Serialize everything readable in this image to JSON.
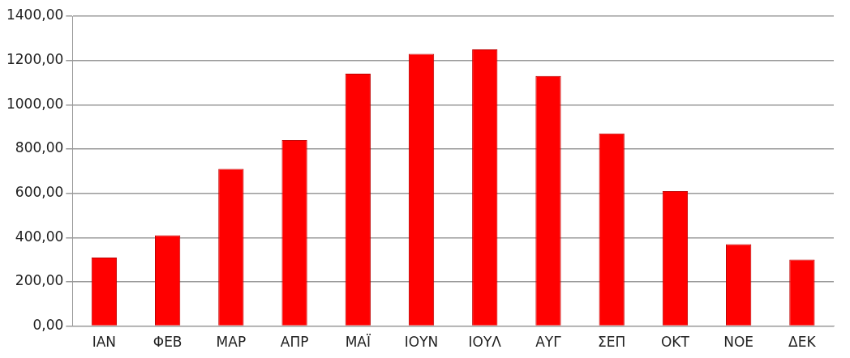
{
  "chart_data": {
    "type": "bar",
    "categories": [
      "ΙΑΝ",
      "ΦΕΒ",
      "ΜΑΡ",
      "ΑΠΡ",
      "ΜΑΪ",
      "ΙΟΥΝ",
      "ΙΟΥΛ",
      "ΑΥΓ",
      "ΣΕΠ",
      "ΟΚΤ",
      "ΝΟΕ",
      "ΔΕΚ"
    ],
    "values": [
      310,
      410,
      710,
      840,
      1140,
      1230,
      1250,
      1130,
      870,
      610,
      370,
      300
    ],
    "color": "#ff0000",
    "ylim": [
      0,
      1400
    ],
    "yticks": [
      {
        "value": 0,
        "label": "0,00"
      },
      {
        "value": 200,
        "label": "200,00"
      },
      {
        "value": 400,
        "label": "400,00"
      },
      {
        "value": 600,
        "label": "600,00"
      },
      {
        "value": 800,
        "label": "800,00"
      },
      {
        "value": 1000,
        "label": "1000,00"
      },
      {
        "value": 1200,
        "label": "1200,00"
      },
      {
        "value": 1400,
        "label": "1400,00"
      }
    ],
    "grid": "y",
    "legend": false
  }
}
